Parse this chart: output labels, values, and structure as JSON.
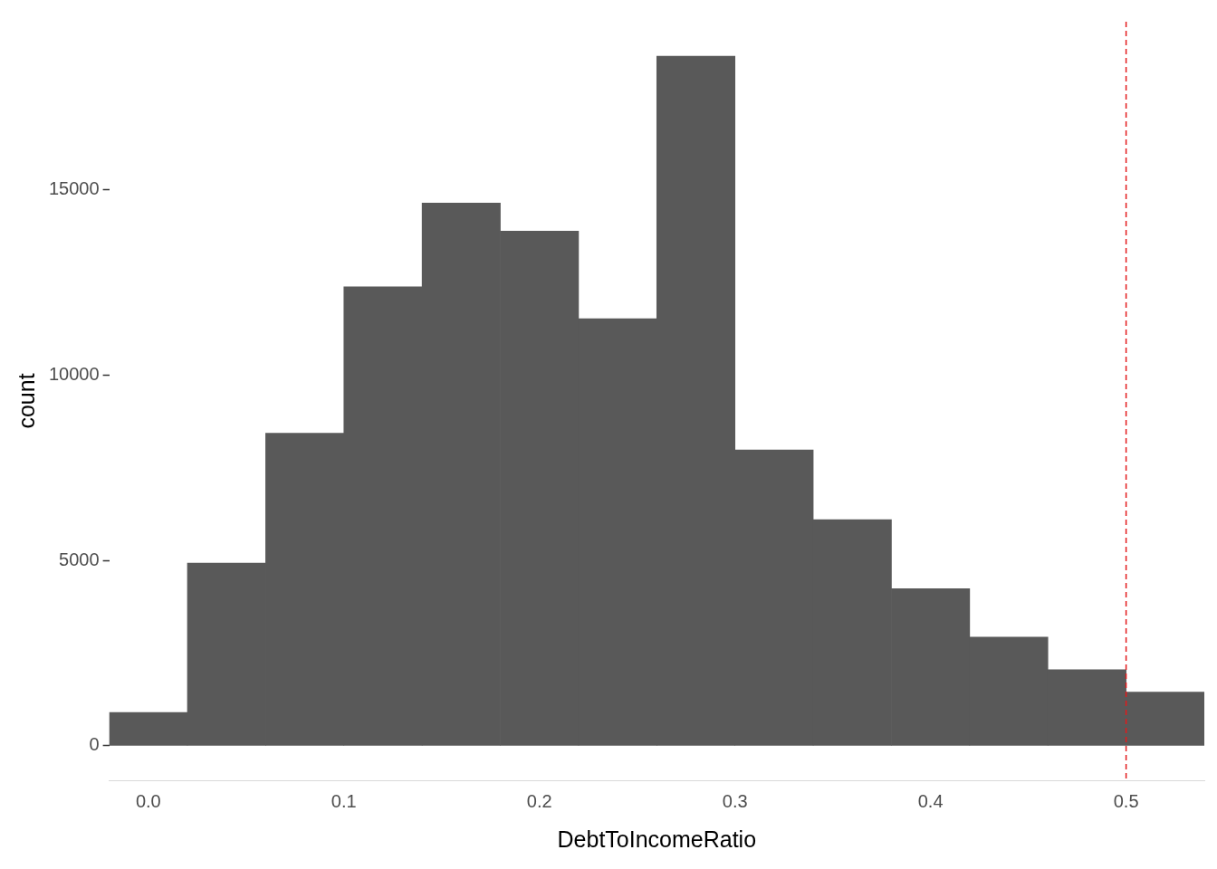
{
  "chart_data": {
    "type": "histogram",
    "xlabel": "DebtToIncomeRatio",
    "ylabel": "count",
    "bins": [
      -0.02,
      0.02,
      0.06,
      0.1,
      0.14,
      0.18,
      0.22,
      0.26,
      0.3,
      0.34,
      0.38,
      0.42,
      0.46,
      0.5,
      0.54
    ],
    "values": [
      900,
      4930,
      8430,
      12380,
      14640,
      13880,
      11520,
      18600,
      7980,
      6100,
      4240,
      2930,
      2050,
      1450
    ],
    "color": "#595959",
    "xlim": [
      -0.02,
      0.54
    ],
    "xticks": [
      {
        "value": 0,
        "label": "0.0"
      },
      0.1,
      0.2,
      0.3,
      0.4,
      0.5
    ],
    "ylim": [
      -930,
      19530
    ],
    "yticks": [
      0,
      5000,
      10000,
      15000
    ],
    "ref_lines": [
      {
        "axis": "x",
        "value": 0.5,
        "color": "#e31a1c",
        "line_style": "dashed"
      }
    ],
    "grid": false,
    "legend": false
  }
}
